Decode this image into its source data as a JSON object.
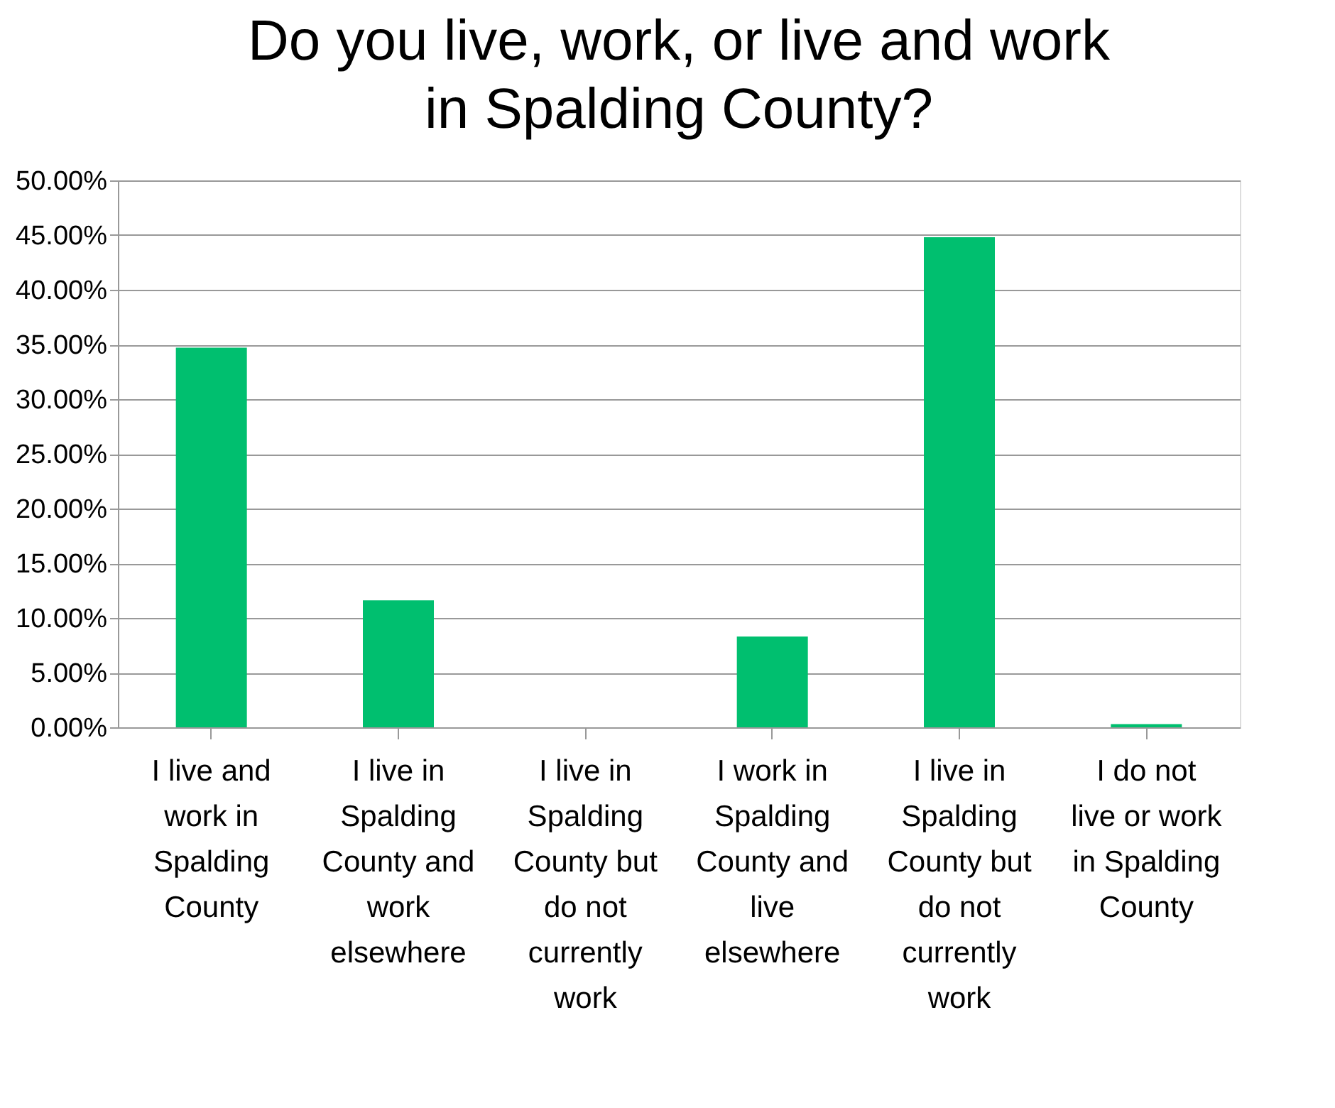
{
  "chart_data": {
    "type": "bar",
    "title": "Do you live, work, or live and work in Spalding County?",
    "categories": [
      "I live and work in Spalding County",
      "I live in Spalding County and work elsewhere",
      "I live in Spalding County but do not currently work",
      "I work in Spalding County and live elsewhere",
      "I live in Spalding County but do not currently work",
      "I do not live or work in Spalding County"
    ],
    "values": [
      34.7,
      11.6,
      0,
      8.3,
      44.8,
      0.3
    ],
    "color": "#00bf6f",
    "ylim": [
      0,
      50
    ],
    "yticks": [
      {
        "value": 0,
        "label": "0.00%"
      },
      {
        "value": 5,
        "label": "5.00%"
      },
      {
        "value": 10,
        "label": "10.00%"
      },
      {
        "value": 15,
        "label": "15.00%"
      },
      {
        "value": 20,
        "label": "20.00%"
      },
      {
        "value": 25,
        "label": "25.00%"
      },
      {
        "value": 30,
        "label": "30.00%"
      },
      {
        "value": 35,
        "label": "35.00%"
      },
      {
        "value": 40,
        "label": "40.00%"
      },
      {
        "value": 45,
        "label": "45.00%"
      },
      {
        "value": 50,
        "label": "50.00%"
      }
    ],
    "grid": "y"
  }
}
